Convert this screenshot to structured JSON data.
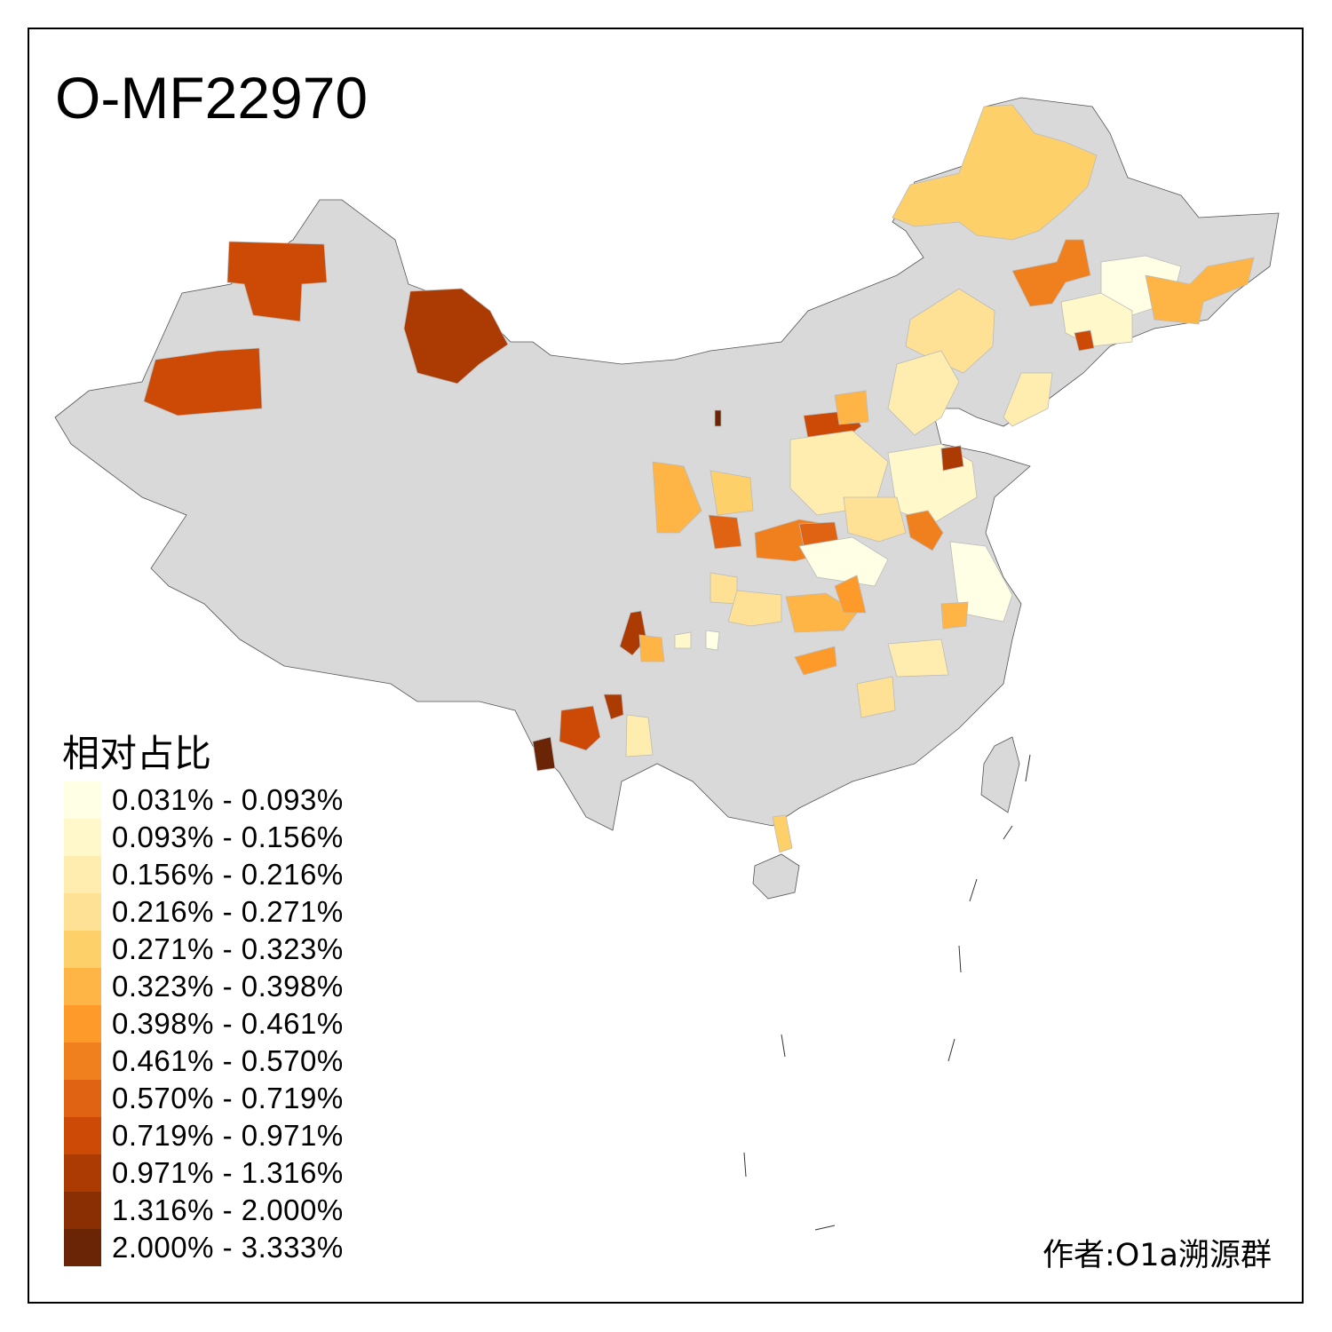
{
  "title": "O-MF22970",
  "legend": {
    "title": "相对占比",
    "classes": [
      {
        "label": "0.031% - 0.093%",
        "color": "#FFFFE6"
      },
      {
        "label": "0.093% - 0.156%",
        "color": "#FFF8CA"
      },
      {
        "label": "0.156% - 0.216%",
        "color": "#FEEDAE"
      },
      {
        "label": "0.216% - 0.271%",
        "color": "#FEE195"
      },
      {
        "label": "0.271% - 0.323%",
        "color": "#FED06A"
      },
      {
        "label": "0.323% - 0.398%",
        "color": "#FEB545"
      },
      {
        "label": "0.398% - 0.461%",
        "color": "#FD9A2A"
      },
      {
        "label": "0.461% - 0.570%",
        "color": "#F07F1E"
      },
      {
        "label": "0.570% - 0.719%",
        "color": "#E06313"
      },
      {
        "label": "0.719% - 0.971%",
        "color": "#CC4A06"
      },
      {
        "label": "0.971% - 1.316%",
        "color": "#AB3A03"
      },
      {
        "label": "1.316% - 2.000%",
        "color": "#8A2F04"
      },
      {
        "label": "2.000% - 3.333%",
        "color": "#6A2406"
      }
    ]
  },
  "no_data_color": "#D9D9D9",
  "credit": "作者:O1a溯源群"
}
